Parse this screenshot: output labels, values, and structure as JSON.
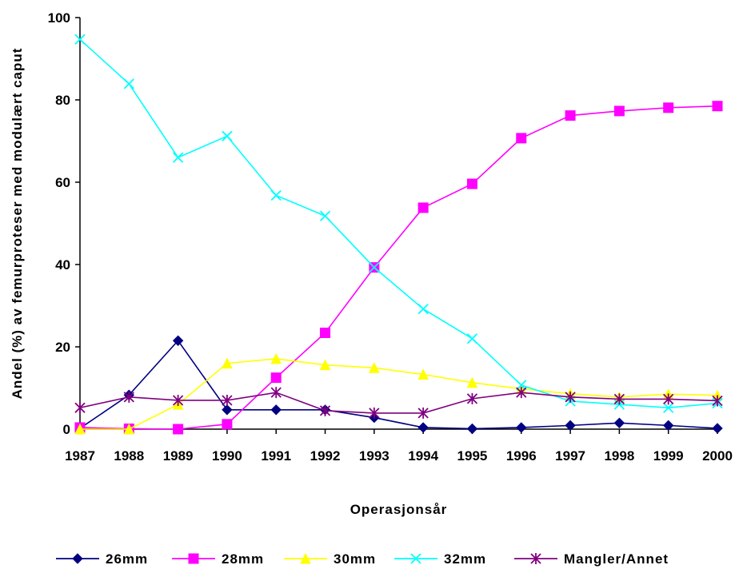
{
  "chart_data": {
    "type": "line",
    "xlabel": "Operasjonsår",
    "ylabel": "Andel (%) av femurproteser med modulært caput",
    "ylim": [
      0,
      100
    ],
    "yticks": [
      0,
      20,
      40,
      60,
      80,
      100
    ],
    "grid": false,
    "legend_position": "bottom",
    "categories": [
      "1987",
      "1988",
      "1989",
      "1990",
      "1991",
      "1992",
      "1993",
      "1994",
      "1995",
      "1996",
      "1997",
      "1998",
      "1999",
      "2000"
    ],
    "series": [
      {
        "name": "26mm",
        "color": "#000080",
        "marker": "diamond",
        "values": [
          0.2,
          8.3,
          21.5,
          4.7,
          4.7,
          4.7,
          2.8,
          0.4,
          0.1,
          0.4,
          0.9,
          1.5,
          0.9,
          0.2
        ]
      },
      {
        "name": "28mm",
        "color": "#FF00FF",
        "marker": "square",
        "values": [
          0.4,
          0.1,
          0.0,
          1.2,
          12.5,
          23.4,
          39.3,
          53.8,
          59.6,
          70.7,
          76.2,
          77.3,
          78.1,
          78.5
        ]
      },
      {
        "name": "30mm",
        "color": "#FFFF00",
        "marker": "triangle",
        "values": [
          0.0,
          0.0,
          6.0,
          16.0,
          17.1,
          15.6,
          14.9,
          13.3,
          11.3,
          9.8,
          8.6,
          7.8,
          8.5,
          8.2
        ]
      },
      {
        "name": "32mm",
        "color": "#00FFFF",
        "marker": "x",
        "values": [
          94.7,
          83.9,
          66.0,
          71.2,
          56.8,
          51.8,
          39.3,
          29.2,
          22.0,
          10.7,
          6.8,
          6.0,
          5.2,
          6.3
        ]
      },
      {
        "name": "Mangler/Annet",
        "color": "#800080",
        "marker": "asterisk",
        "values": [
          5.2,
          7.8,
          7.0,
          7.0,
          8.9,
          4.5,
          3.9,
          3.9,
          7.4,
          8.9,
          7.8,
          7.3,
          7.3,
          6.9
        ]
      }
    ]
  }
}
